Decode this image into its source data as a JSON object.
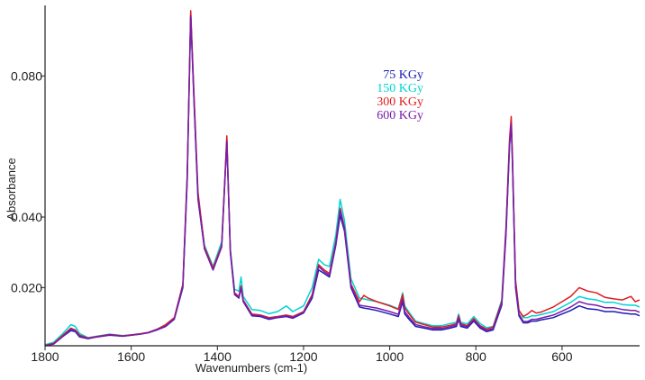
{
  "chart_data": {
    "type": "line",
    "title": "",
    "xlabel": "Wavenumbers (cm-1)",
    "ylabel": "Absorbance",
    "xlim": [
      1800,
      420
    ],
    "ylim": [
      0.0035,
      0.1
    ],
    "x_reversed": true,
    "grid": false,
    "legend_placement": "top-center",
    "x_ticks": [
      1800,
      1600,
      1400,
      1200,
      1000,
      800,
      600
    ],
    "x_tick_labels": [
      "1800",
      "1600",
      "1400",
      "1200",
      "1000",
      "800",
      "600"
    ],
    "y_ticks": [
      0.02,
      0.04,
      0.08
    ],
    "y_tick_labels": [
      "0.020",
      "0.040",
      "0.080"
    ],
    "x": [
      1800,
      1780,
      1760,
      1740,
      1730,
      1720,
      1700,
      1680,
      1650,
      1620,
      1600,
      1580,
      1560,
      1540,
      1520,
      1500,
      1480,
      1470,
      1462,
      1455,
      1445,
      1430,
      1410,
      1390,
      1378,
      1370,
      1360,
      1350,
      1345,
      1340,
      1320,
      1300,
      1280,
      1260,
      1240,
      1225,
      1200,
      1180,
      1165,
      1152,
      1140,
      1125,
      1115,
      1105,
      1090,
      1070,
      1060,
      1050,
      1030,
      1000,
      980,
      970,
      965,
      955,
      940,
      920,
      900,
      880,
      860,
      845,
      840,
      835,
      820,
      805,
      790,
      775,
      760,
      740,
      730,
      722,
      718,
      715,
      708,
      700,
      690,
      680,
      670,
      660,
      650,
      620,
      600,
      580,
      560,
      540,
      520,
      500,
      480,
      460,
      440,
      430,
      420
    ],
    "series": [
      {
        "name": "75 KGy",
        "color": "#1c1cb4",
        "values": [
          0.0035,
          0.004,
          0.006,
          0.0078,
          0.0075,
          0.006,
          0.0055,
          0.006,
          0.0065,
          0.0062,
          0.0065,
          0.0068,
          0.0072,
          0.008,
          0.009,
          0.011,
          0.02,
          0.05,
          0.0978,
          0.075,
          0.045,
          0.031,
          0.025,
          0.032,
          0.062,
          0.03,
          0.018,
          0.017,
          0.02,
          0.016,
          0.012,
          0.0118,
          0.011,
          0.0115,
          0.0118,
          0.0113,
          0.0128,
          0.017,
          0.025,
          0.024,
          0.023,
          0.032,
          0.0405,
          0.036,
          0.02,
          0.0145,
          0.0142,
          0.014,
          0.0135,
          0.0125,
          0.0118,
          0.016,
          0.0125,
          0.011,
          0.009,
          0.0085,
          0.008,
          0.008,
          0.0085,
          0.009,
          0.011,
          0.009,
          0.0085,
          0.0105,
          0.0085,
          0.0075,
          0.008,
          0.015,
          0.035,
          0.06,
          0.0665,
          0.055,
          0.02,
          0.012,
          0.01,
          0.01,
          0.0105,
          0.0105,
          0.0108,
          0.0115,
          0.0125,
          0.0135,
          0.0148,
          0.014,
          0.0138,
          0.0132,
          0.0132,
          0.0128,
          0.0125,
          0.0125,
          0.012
        ]
      },
      {
        "name": "150 KGy",
        "color": "#00d4d4",
        "values": [
          0.0038,
          0.0045,
          0.0068,
          0.0095,
          0.009,
          0.007,
          0.0058,
          0.0062,
          0.0068,
          0.0064,
          0.0066,
          0.0069,
          0.0073,
          0.0082,
          0.0092,
          0.0112,
          0.0205,
          0.051,
          0.0975,
          0.076,
          0.046,
          0.032,
          0.026,
          0.033,
          0.061,
          0.031,
          0.0195,
          0.019,
          0.023,
          0.0175,
          0.0138,
          0.0135,
          0.0126,
          0.0132,
          0.0148,
          0.0132,
          0.0148,
          0.02,
          0.028,
          0.0265,
          0.026,
          0.035,
          0.045,
          0.039,
          0.0225,
          0.017,
          0.0168,
          0.0165,
          0.016,
          0.015,
          0.014,
          0.0185,
          0.0148,
          0.013,
          0.0105,
          0.0098,
          0.0092,
          0.0092,
          0.0098,
          0.0102,
          0.0125,
          0.0102,
          0.0097,
          0.0118,
          0.0098,
          0.0086,
          0.009,
          0.0165,
          0.037,
          0.061,
          0.0665,
          0.056,
          0.022,
          0.0135,
          0.0115,
          0.0115,
          0.012,
          0.012,
          0.0123,
          0.0132,
          0.0145,
          0.0158,
          0.0175,
          0.0168,
          0.0165,
          0.0158,
          0.0158,
          0.0152,
          0.015,
          0.015,
          0.0145
        ]
      },
      {
        "name": "300 KGy",
        "color": "#e01c1c",
        "values": [
          0.0036,
          0.0042,
          0.0063,
          0.0085,
          0.008,
          0.0065,
          0.0057,
          0.0061,
          0.0067,
          0.0063,
          0.0066,
          0.0069,
          0.0073,
          0.0082,
          0.0095,
          0.0115,
          0.021,
          0.052,
          0.0985,
          0.077,
          0.047,
          0.0315,
          0.0255,
          0.032,
          0.063,
          0.0305,
          0.0185,
          0.0175,
          0.0205,
          0.0165,
          0.0125,
          0.0122,
          0.0115,
          0.0118,
          0.0122,
          0.0118,
          0.0132,
          0.018,
          0.0265,
          0.025,
          0.024,
          0.033,
          0.0425,
          0.037,
          0.021,
          0.016,
          0.0178,
          0.017,
          0.016,
          0.0148,
          0.0138,
          0.018,
          0.0142,
          0.0125,
          0.0102,
          0.0095,
          0.0088,
          0.0088,
          0.0093,
          0.0098,
          0.012,
          0.0098,
          0.0092,
          0.0112,
          0.0092,
          0.0082,
          0.0088,
          0.016,
          0.037,
          0.062,
          0.0685,
          0.057,
          0.022,
          0.0135,
          0.0118,
          0.0125,
          0.0135,
          0.0128,
          0.013,
          0.0145,
          0.016,
          0.0175,
          0.02,
          0.019,
          0.0185,
          0.0172,
          0.0168,
          0.0165,
          0.0175,
          0.016,
          0.0165
        ]
      },
      {
        "name": "600 KGy",
        "color": "#7a1ca8",
        "values": [
          0.0035,
          0.004,
          0.006,
          0.0082,
          0.0078,
          0.0062,
          0.0056,
          0.006,
          0.0066,
          0.0062,
          0.0065,
          0.0068,
          0.0072,
          0.0081,
          0.0091,
          0.0112,
          0.0205,
          0.051,
          0.097,
          0.0755,
          0.0455,
          0.031,
          0.025,
          0.0315,
          0.0615,
          0.0302,
          0.0182,
          0.0172,
          0.02,
          0.0162,
          0.0122,
          0.012,
          0.0112,
          0.0116,
          0.012,
          0.0115,
          0.013,
          0.0175,
          0.026,
          0.0245,
          0.0235,
          0.0325,
          0.042,
          0.0365,
          0.0205,
          0.015,
          0.0148,
          0.0146,
          0.0142,
          0.0132,
          0.0124,
          0.0168,
          0.0132,
          0.0116,
          0.0095,
          0.0089,
          0.0084,
          0.0084,
          0.0089,
          0.0094,
          0.0115,
          0.0094,
          0.0089,
          0.0108,
          0.0089,
          0.0078,
          0.0084,
          0.0155,
          0.036,
          0.0605,
          0.0665,
          0.0555,
          0.0205,
          0.0125,
          0.0104,
          0.0104,
          0.011,
          0.011,
          0.0113,
          0.0122,
          0.0133,
          0.0145,
          0.016,
          0.0153,
          0.015,
          0.0143,
          0.0143,
          0.0138,
          0.0135,
          0.0135,
          0.013
        ]
      }
    ]
  }
}
